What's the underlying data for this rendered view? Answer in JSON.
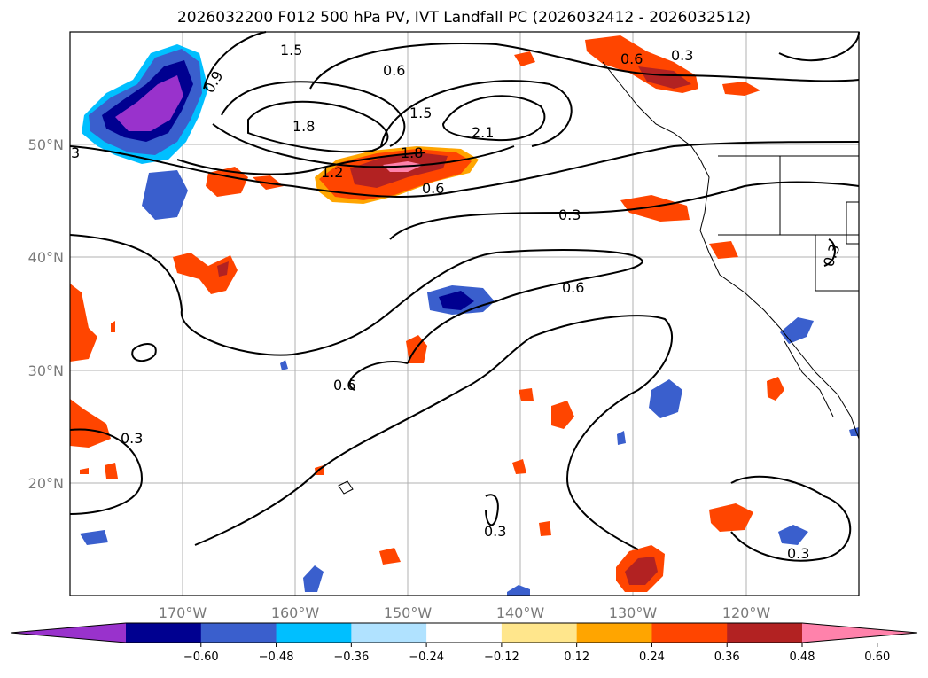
{
  "title": "2026032200 F012 500 hPa PV, IVT Landfall PC (2026032412 - 2026032512)",
  "axes": {
    "lat_ticks": [
      "50°N",
      "40°N",
      "30°N",
      "20°N"
    ],
    "lon_ticks": [
      "170°W",
      "160°W",
      "150°W",
      "140°W",
      "130°W",
      "120°W"
    ]
  },
  "colorbar": {
    "ticks": [
      "−0.60",
      "−0.48",
      "−0.36",
      "−0.24",
      "−0.12",
      "0.12",
      "0.24",
      "0.36",
      "0.48",
      "0.60"
    ],
    "colors": [
      "#9932cc",
      "#000090",
      "#3a5fcd",
      "#00bfff",
      "#b0e2ff",
      "#ffffff",
      "#ffe68c",
      "#ffa500",
      "#ff4500",
      "#b22222",
      "#ff82ab"
    ]
  },
  "contour_labels": [
    {
      "text": "1.5",
      "style": "tilt"
    },
    {
      "text": "0.9"
    },
    {
      "text": "0.6"
    },
    {
      "text": "0.6"
    },
    {
      "text": "0.3"
    },
    {
      "text": "1.5"
    },
    {
      "text": "1.8"
    },
    {
      "text": "2.1"
    },
    {
      "text": "1.8"
    },
    {
      "text": "1.2"
    },
    {
      "text": "0.6"
    },
    {
      "text": "0.3"
    },
    {
      "text": "3"
    },
    {
      "text": "0.6"
    },
    {
      "text": "0.6"
    },
    {
      "text": "0.3"
    },
    {
      "text": "0.3"
    },
    {
      "text": "0.3"
    },
    {
      "text": "0.3"
    }
  ]
}
